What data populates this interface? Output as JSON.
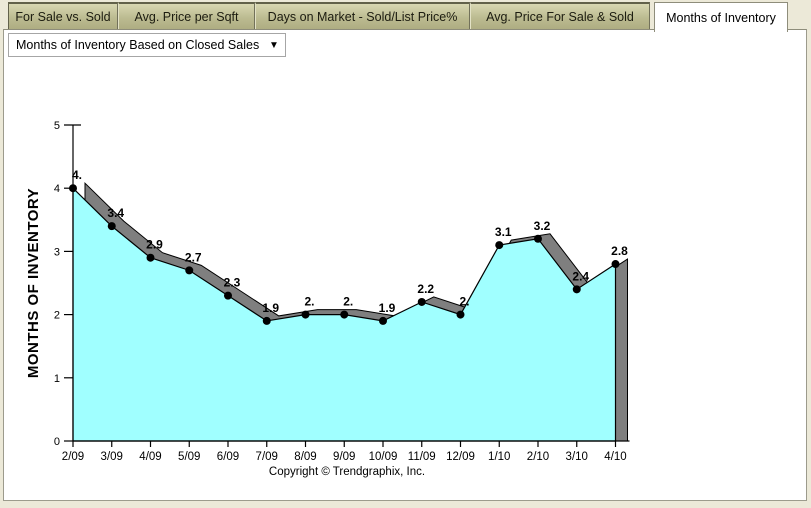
{
  "tabs": [
    {
      "label": "For Sale vs. Sold",
      "active": false
    },
    {
      "label": "Avg. Price per Sqft",
      "active": false
    },
    {
      "label": "Days on Market - Sold/List Price%",
      "active": false
    },
    {
      "label": "Avg. Price For Sale & Sold",
      "active": false
    },
    {
      "label": "Months of Inventory",
      "active": true
    }
  ],
  "dropdown": {
    "value": "Months of Inventory Based on Closed Sales",
    "arrow_icon": "▼"
  },
  "chart_data": {
    "type": "area",
    "title": "",
    "xlabel": "",
    "ylabel": "MONTHS OF INVENTORY",
    "categories": [
      "2/09",
      "3/09",
      "4/09",
      "5/09",
      "6/09",
      "7/09",
      "8/09",
      "9/09",
      "10/09",
      "11/09",
      "12/09",
      "1/10",
      "2/10",
      "3/10",
      "4/10"
    ],
    "values": [
      4.0,
      3.4,
      2.9,
      2.7,
      2.3,
      1.9,
      2.0,
      2.0,
      1.9,
      2.2,
      2.0,
      3.1,
      3.2,
      2.4,
      2.8
    ],
    "point_labels": [
      "4.",
      "3.4",
      "2.9",
      "2.7",
      "2.3",
      "1.9",
      "2.",
      "2.",
      "1.9",
      "2.2",
      "2.",
      "3.1",
      "3.2",
      "2.4",
      "2.8"
    ],
    "ylim": [
      0,
      5
    ],
    "yticks": [
      0,
      1,
      2,
      3,
      4,
      5
    ],
    "grid": false,
    "legend": false,
    "fill_color": "#a0ffff",
    "depth_color": "#7f7f7f",
    "line_color": "#000000",
    "marker_color": "#000000"
  },
  "footer": {
    "copyright": "Copyright © Trendgraphix, Inc."
  }
}
